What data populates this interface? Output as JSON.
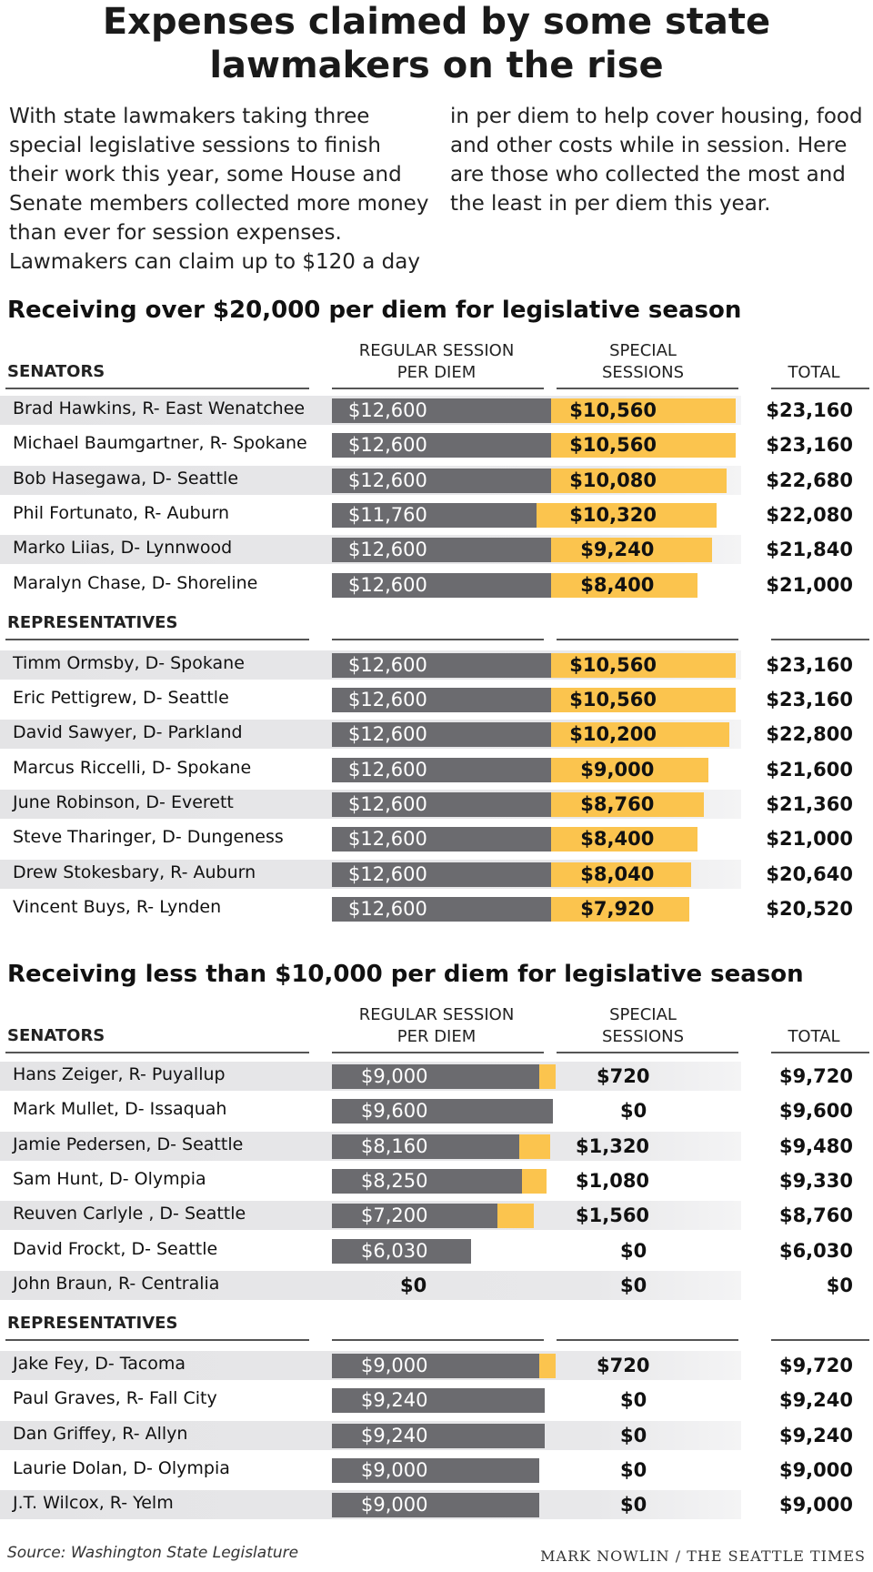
{
  "title": "Expenses claimed by some state lawmakers on the rise",
  "intro_left": "With state lawmakers taking three special legislative sessions to finish their work this year, some House and Senate members collected more money than ever for session expenses. Lawmakers can claim up to $120 a day",
  "intro_right": "in per diem to help cover housing, food and other costs while in session. Here are those who collected the most and the least in per diem this year.",
  "colors": {
    "regular": "#6b6b6f",
    "special": "#fbc44e",
    "shade": "#e6e6e8"
  },
  "headers": {
    "regular_line1": "REGULAR SESSION",
    "regular_line2": "PER DIEM",
    "special_line1": "SPECIAL",
    "special_line2": "SESSIONS",
    "total": "TOTAL"
  },
  "source": "Source: Washington State Legislature",
  "credit": "MARK NOWLIN / THE SEATTLE TIMES",
  "chart_data": [
    {
      "type": "bar",
      "stacked": true,
      "title": "Receiving over $20,000 per diem for legislative season",
      "series_names": [
        "Regular session per diem",
        "Special sessions"
      ],
      "groups": [
        {
          "label": "SENATORS",
          "rows": [
            {
              "name": "Brad Hawkins, R- East Wenatchee",
              "regular": 12600,
              "special": 10560,
              "total": 23160,
              "regular_label": "$12,600",
              "special_label": "$10,560",
              "total_label": "$23,160"
            },
            {
              "name": "Michael Baumgartner, R- Spokane",
              "regular": 12600,
              "special": 10560,
              "total": 23160,
              "regular_label": "$12,600",
              "special_label": "$10,560",
              "total_label": "$23,160"
            },
            {
              "name": "Bob Hasegawa, D- Seattle",
              "regular": 12600,
              "special": 10080,
              "total": 22680,
              "regular_label": "$12,600",
              "special_label": "$10,080",
              "total_label": "$22,680"
            },
            {
              "name": "Phil Fortunato, R- Auburn",
              "regular": 11760,
              "special": 10320,
              "total": 22080,
              "regular_label": "$11,760",
              "special_label": "$10,320",
              "total_label": "$22,080"
            },
            {
              "name": "Marko Liias, D- Lynnwood",
              "regular": 12600,
              "special": 9240,
              "total": 21840,
              "regular_label": "$12,600",
              "special_label": "$9,240",
              "total_label": "$21,840"
            },
            {
              "name": "Maralyn Chase, D- Shoreline",
              "regular": 12600,
              "special": 8400,
              "total": 21000,
              "regular_label": "$12,600",
              "special_label": "$8,400",
              "total_label": "$21,000"
            }
          ]
        },
        {
          "label": "REPRESENTATIVES",
          "rows": [
            {
              "name": "Timm Ormsby, D- Spokane",
              "regular": 12600,
              "special": 10560,
              "total": 23160,
              "regular_label": "$12,600",
              "special_label": "$10,560",
              "total_label": "$23,160"
            },
            {
              "name": "Eric Pettigrew, D- Seattle",
              "regular": 12600,
              "special": 10560,
              "total": 23160,
              "regular_label": "$12,600",
              "special_label": "$10,560",
              "total_label": "$23,160"
            },
            {
              "name": "David Sawyer, D- Parkland",
              "regular": 12600,
              "special": 10200,
              "total": 22800,
              "regular_label": "$12,600",
              "special_label": "$10,200",
              "total_label": "$22,800"
            },
            {
              "name": "Marcus Riccelli, D- Spokane",
              "regular": 12600,
              "special": 9000,
              "total": 21600,
              "regular_label": "$12,600",
              "special_label": "$9,000",
              "total_label": "$21,600"
            },
            {
              "name": "June Robinson, D- Everett",
              "regular": 12600,
              "special": 8760,
              "total": 21360,
              "regular_label": "$12,600",
              "special_label": "$8,760",
              "total_label": "$21,360"
            },
            {
              "name": "Steve Tharinger, D- Dungeness",
              "regular": 12600,
              "special": 8400,
              "total": 21000,
              "regular_label": "$12,600",
              "special_label": "$8,400",
              "total_label": "$21,000"
            },
            {
              "name": "Drew Stokesbary, R- Auburn",
              "regular": 12600,
              "special": 8040,
              "total": 20640,
              "regular_label": "$12,600",
              "special_label": "$8,040",
              "total_label": "$20,640"
            },
            {
              "name": "Vincent Buys, R- Lynden",
              "regular": 12600,
              "special": 7920,
              "total": 20520,
              "regular_label": "$12,600",
              "special_label": "$7,920",
              "total_label": "$20,520"
            }
          ]
        }
      ]
    },
    {
      "type": "bar",
      "stacked": true,
      "title": "Receiving less than $10,000 per diem for legislative season",
      "series_names": [
        "Regular session per diem",
        "Special sessions"
      ],
      "groups": [
        {
          "label": "SENATORS",
          "rows": [
            {
              "name": "Hans Zeiger, R- Puyallup",
              "regular": 9000,
              "special": 720,
              "total": 9720,
              "regular_label": "$9,000",
              "special_label": "$720",
              "total_label": "$9,720"
            },
            {
              "name": "Mark Mullet, D- Issaquah",
              "regular": 9600,
              "special": 0,
              "total": 9600,
              "regular_label": "$9,600",
              "special_label": "$0",
              "total_label": "$9,600"
            },
            {
              "name": "Jamie Pedersen, D- Seattle",
              "regular": 8160,
              "special": 1320,
              "total": 9480,
              "regular_label": "$8,160",
              "special_label": "$1,320",
              "total_label": "$9,480"
            },
            {
              "name": "Sam Hunt, D- Olympia",
              "regular": 8250,
              "special": 1080,
              "total": 9330,
              "regular_label": "$8,250",
              "special_label": "$1,080",
              "total_label": "$9,330"
            },
            {
              "name": "Reuven Carlyle , D- Seattle",
              "regular": 7200,
              "special": 1560,
              "total": 8760,
              "regular_label": "$7,200",
              "special_label": "$1,560",
              "total_label": "$8,760"
            },
            {
              "name": "David Frockt, D- Seattle",
              "regular": 6030,
              "special": 0,
              "total": 6030,
              "regular_label": "$6,030",
              "special_label": "$0",
              "total_label": "$6,030"
            },
            {
              "name": "John Braun, R- Centralia",
              "regular": 0,
              "special": 0,
              "total": 0,
              "regular_label": "$0",
              "special_label": "$0",
              "total_label": "$0"
            }
          ]
        },
        {
          "label": "REPRESENTATIVES",
          "rows": [
            {
              "name": "Jake Fey, D- Tacoma",
              "regular": 9000,
              "special": 720,
              "total": 9720,
              "regular_label": "$9,000",
              "special_label": "$720",
              "total_label": "$9,720"
            },
            {
              "name": "Paul Graves, R- Fall City",
              "regular": 9240,
              "special": 0,
              "total": 9240,
              "regular_label": "$9,240",
              "special_label": "$0",
              "total_label": "$9,240"
            },
            {
              "name": "Dan Griffey, R- Allyn",
              "regular": 9240,
              "special": 0,
              "total": 9240,
              "regular_label": "$9,240",
              "special_label": "$0",
              "total_label": "$9,240"
            },
            {
              "name": "Laurie Dolan, D- Olympia",
              "regular": 9000,
              "special": 0,
              "total": 9000,
              "regular_label": "$9,000",
              "special_label": "$0",
              "total_label": "$9,000"
            },
            {
              "name": "J.T. Wilcox, R- Yelm",
              "regular": 9000,
              "special": 0,
              "total": 9000,
              "regular_label": "$9,000",
              "special_label": "$0",
              "total_label": "$9,000"
            }
          ]
        }
      ]
    }
  ]
}
